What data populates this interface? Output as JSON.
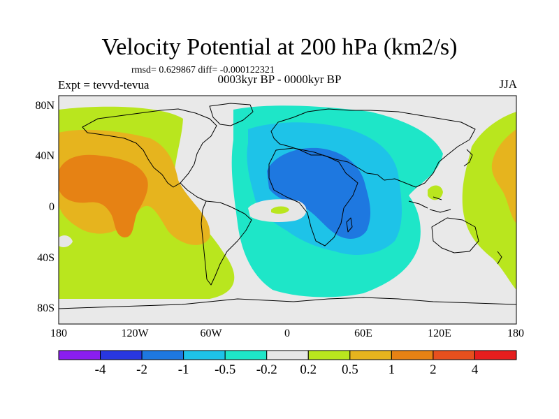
{
  "header": {
    "title": "Velocity Potential at 200 hPa (km2/s)",
    "stats": "rmsd= 0.629867 diff= -0.000122321",
    "experiment": "Expt = tevvd-tevua",
    "period": "0003kyr BP - 0000kyr BP",
    "season": "JJA"
  },
  "map": {
    "projection": "cylindrical-equidistant",
    "lon_range": [
      -180,
      180
    ],
    "lat_range": [
      -90,
      90
    ],
    "ocean_color": "#e9e9e9",
    "coastline_color": "#000000",
    "x_tick_labels": [
      "180",
      "120W",
      "60W",
      "0",
      "60E",
      "120E",
      "180"
    ],
    "y_tick_labels": [
      "80N",
      "40N",
      "0",
      "40S",
      "80S"
    ]
  },
  "colorbar": {
    "colors": [
      "#8a1ef0",
      "#2837e0",
      "#1e78e0",
      "#1ec3e8",
      "#1ee6c8",
      "#e6e6e6",
      "#b9e61e",
      "#e6b41e",
      "#e68214",
      "#e6501e",
      "#e61e1e"
    ],
    "labels": [
      "-4",
      "-2",
      "-1",
      "-0.5",
      "-0.2",
      "0.2",
      "0.5",
      "1",
      "2",
      "4"
    ]
  },
  "chart_data": {
    "type": "heatmap",
    "variable": "Velocity Potential at 200 hPa",
    "units": "km2/s",
    "levels": [
      -4,
      -2,
      -1,
      -0.5,
      -0.2,
      0.2,
      0.5,
      1,
      2,
      4
    ],
    "regions": [
      {
        "area": "Central/East Pacific",
        "level_range": [
          1,
          2
        ]
      },
      {
        "area": "North & South Pacific",
        "level_range": [
          0.5,
          1
        ]
      },
      {
        "area": "Western Pacific / Indonesia",
        "level_range": [
          0.2,
          1
        ]
      },
      {
        "area": "Africa / Middle East / Arabian Sea",
        "level_range": [
          -2,
          -1
        ]
      },
      {
        "area": "Atlantic / Europe / Indian Ocean",
        "level_range": [
          -1,
          -0.5
        ]
      },
      {
        "area": "Equatorial Atlantic",
        "level_range": [
          -0.2,
          0.5
        ]
      }
    ]
  }
}
